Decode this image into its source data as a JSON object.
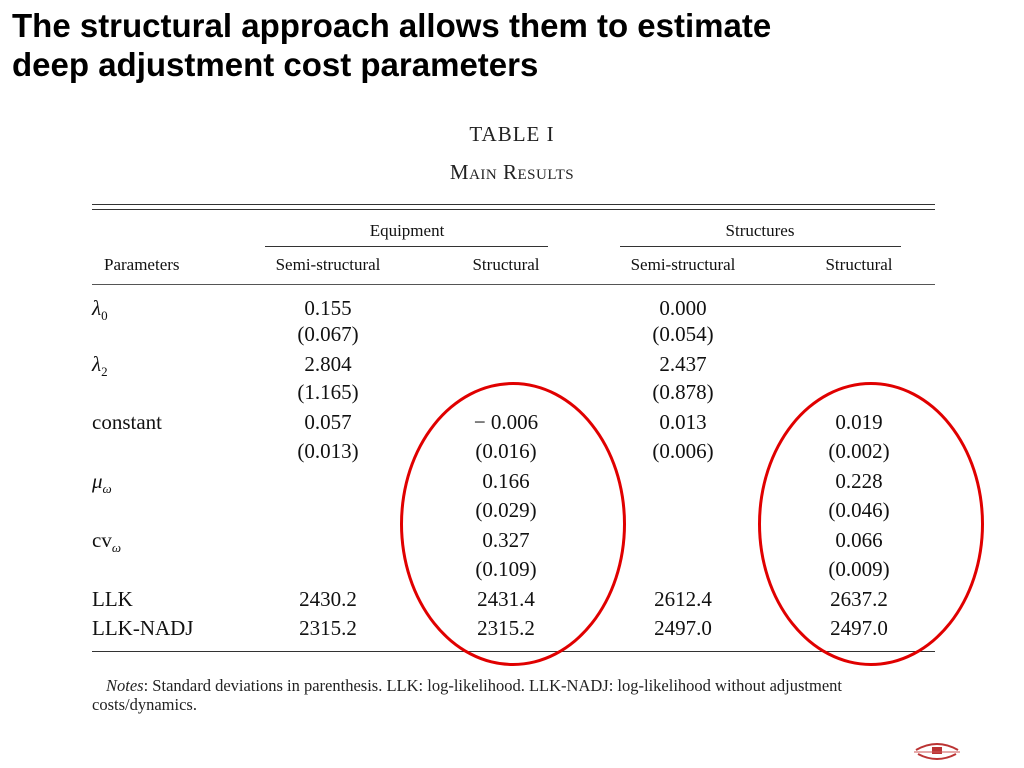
{
  "slide": {
    "title_line1": "The structural approach allows them to estimate",
    "title_line2": "deep adjustment cost parameters"
  },
  "table": {
    "caption": "TABLE I",
    "subcaption": "Main Results",
    "group_equipment": "Equipment",
    "group_structures": "Structures",
    "col_parameters": "Parameters",
    "col_semi_structural": "Semi-structural",
    "col_structural": "Structural",
    "rows": [
      {
        "label_main": "λ",
        "label_sub": "0",
        "eq_semi": "0.155",
        "eq_struct": "",
        "st_semi": "0.000",
        "st_struct": ""
      },
      {
        "label_main": "",
        "label_sub": "",
        "eq_semi": "(0.067)",
        "eq_struct": "",
        "st_semi": "(0.054)",
        "st_struct": ""
      },
      {
        "label_main": "λ",
        "label_sub": "2",
        "eq_semi": "2.804",
        "eq_struct": "",
        "st_semi": "2.437",
        "st_struct": ""
      },
      {
        "label_main": "",
        "label_sub": "",
        "eq_semi": "(1.165)",
        "eq_struct": "",
        "st_semi": "(0.878)",
        "st_struct": ""
      },
      {
        "label_main": "constant",
        "label_sub": "",
        "eq_semi": "0.057",
        "eq_struct": "− 0.006",
        "st_semi": "0.013",
        "st_struct": "0.019"
      },
      {
        "label_main": "",
        "label_sub": "",
        "eq_semi": "(0.013)",
        "eq_struct": "(0.016)",
        "st_semi": "(0.006)",
        "st_struct": "(0.002)"
      },
      {
        "label_main": "μ",
        "label_sub": "ω",
        "eq_semi": "",
        "eq_struct": "0.166",
        "st_semi": "",
        "st_struct": "0.228"
      },
      {
        "label_main": "",
        "label_sub": "",
        "eq_semi": "",
        "eq_struct": "(0.029)",
        "st_semi": "",
        "st_struct": "(0.046)"
      },
      {
        "label_main": "cv",
        "label_sub": "ω",
        "eq_semi": "",
        "eq_struct": "0.327",
        "st_semi": "",
        "st_struct": "0.066"
      },
      {
        "label_main": "",
        "label_sub": "",
        "eq_semi": "",
        "eq_struct": "(0.109)",
        "st_semi": "",
        "st_struct": "(0.009)"
      },
      {
        "label_main": "LLK",
        "label_sub": "",
        "eq_semi": "2430.2",
        "eq_struct": "2431.4",
        "st_semi": "2612.4",
        "st_struct": "2637.2"
      },
      {
        "label_main": "LLK-NADJ",
        "label_sub": "",
        "eq_semi": "2315.2",
        "eq_struct": "2315.2",
        "st_semi": "2497.0",
        "st_struct": "2497.0"
      }
    ],
    "notes_label": "Notes",
    "notes_text": ": Standard deviations in parenthesis. LLK: log-likelihood. LLK-NADJ: log-likelihood without adjustment costs/dynamics."
  },
  "annotations": {
    "highlight_color": "#e00000"
  },
  "icons": {
    "logo": "university-seal-logo"
  }
}
